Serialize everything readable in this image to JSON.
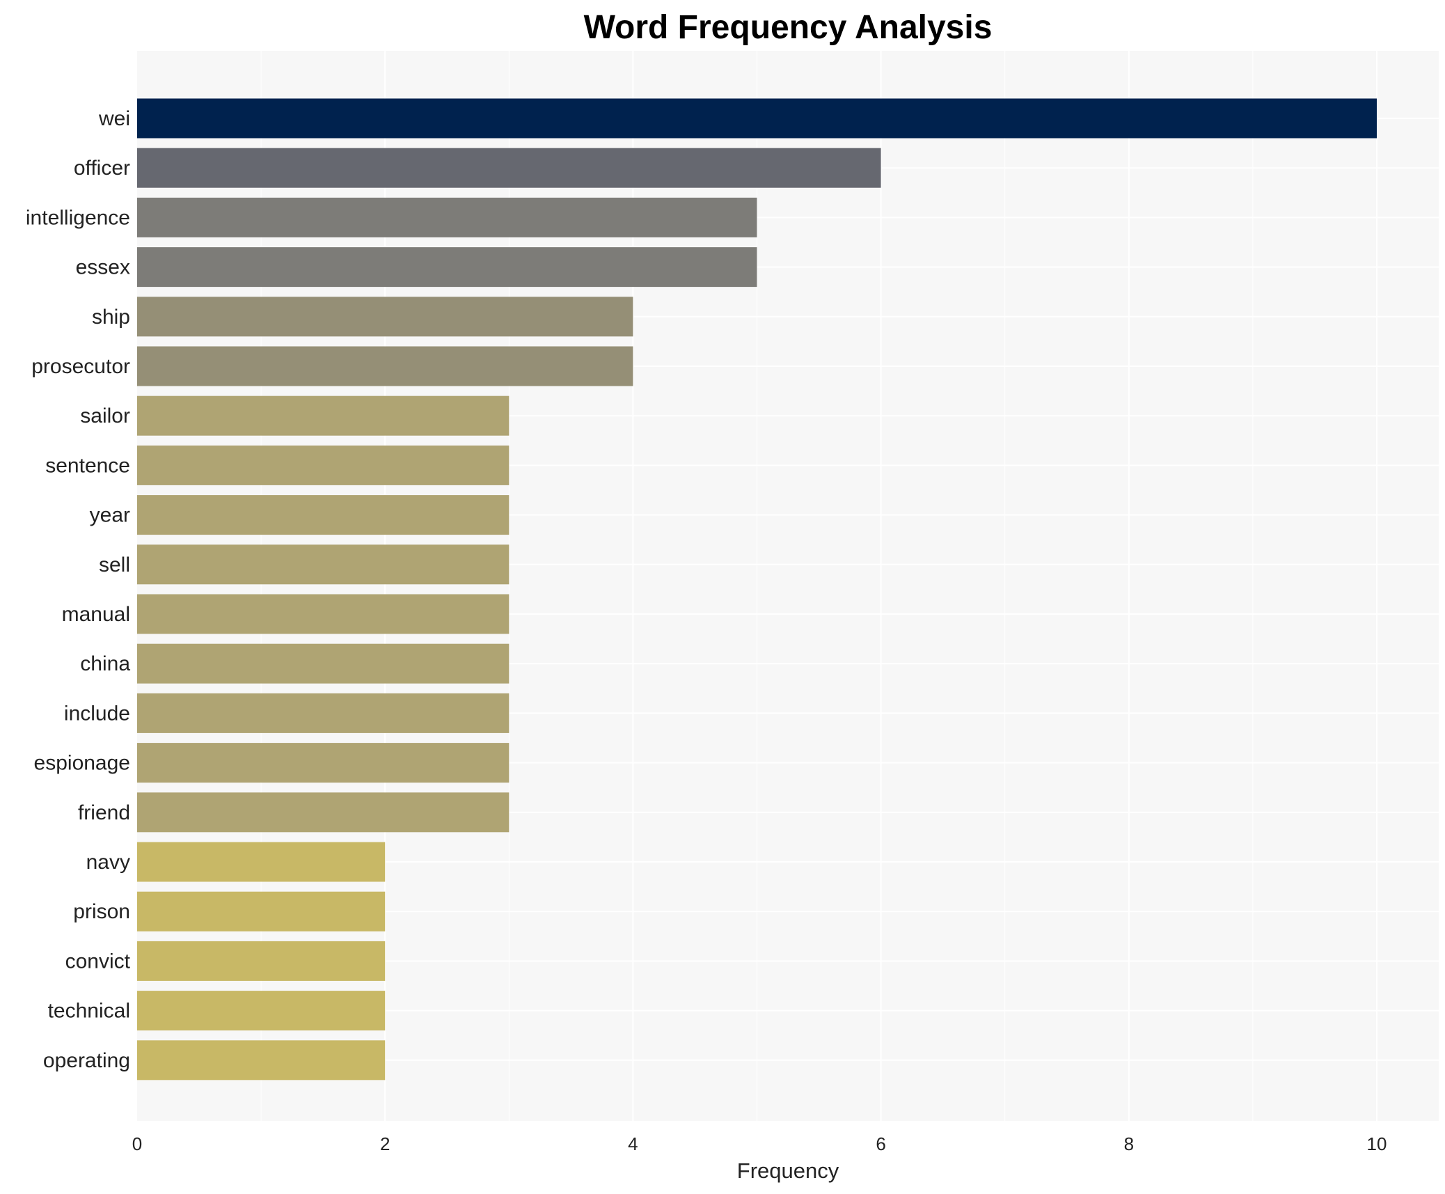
{
  "chart_data": {
    "type": "bar",
    "orientation": "horizontal",
    "title": "Word Frequency Analysis",
    "xlabel": "Frequency",
    "ylabel": "",
    "xlim": [
      0,
      10.5
    ],
    "xticks": [
      0,
      2,
      4,
      6,
      8,
      10
    ],
    "grid": true,
    "categories": [
      "wei",
      "officer",
      "intelligence",
      "essex",
      "ship",
      "prosecutor",
      "sailor",
      "sentence",
      "year",
      "sell",
      "manual",
      "china",
      "include",
      "espionage",
      "friend",
      "navy",
      "prison",
      "convict",
      "technical",
      "operating"
    ],
    "values": [
      10,
      6,
      5,
      5,
      4,
      4,
      3,
      3,
      3,
      3,
      3,
      3,
      3,
      3,
      3,
      2,
      2,
      2,
      2,
      2
    ],
    "colors": [
      "#00224e",
      "#666870",
      "#7d7c78",
      "#7d7c78",
      "#958f76",
      "#958f76",
      "#afa473",
      "#afa473",
      "#afa473",
      "#afa473",
      "#afa473",
      "#afa473",
      "#afa473",
      "#afa473",
      "#afa473",
      "#c8b866",
      "#c8b866",
      "#c8b866",
      "#c8b866",
      "#c8b866"
    ],
    "plot_background": "#f7f7f7"
  }
}
